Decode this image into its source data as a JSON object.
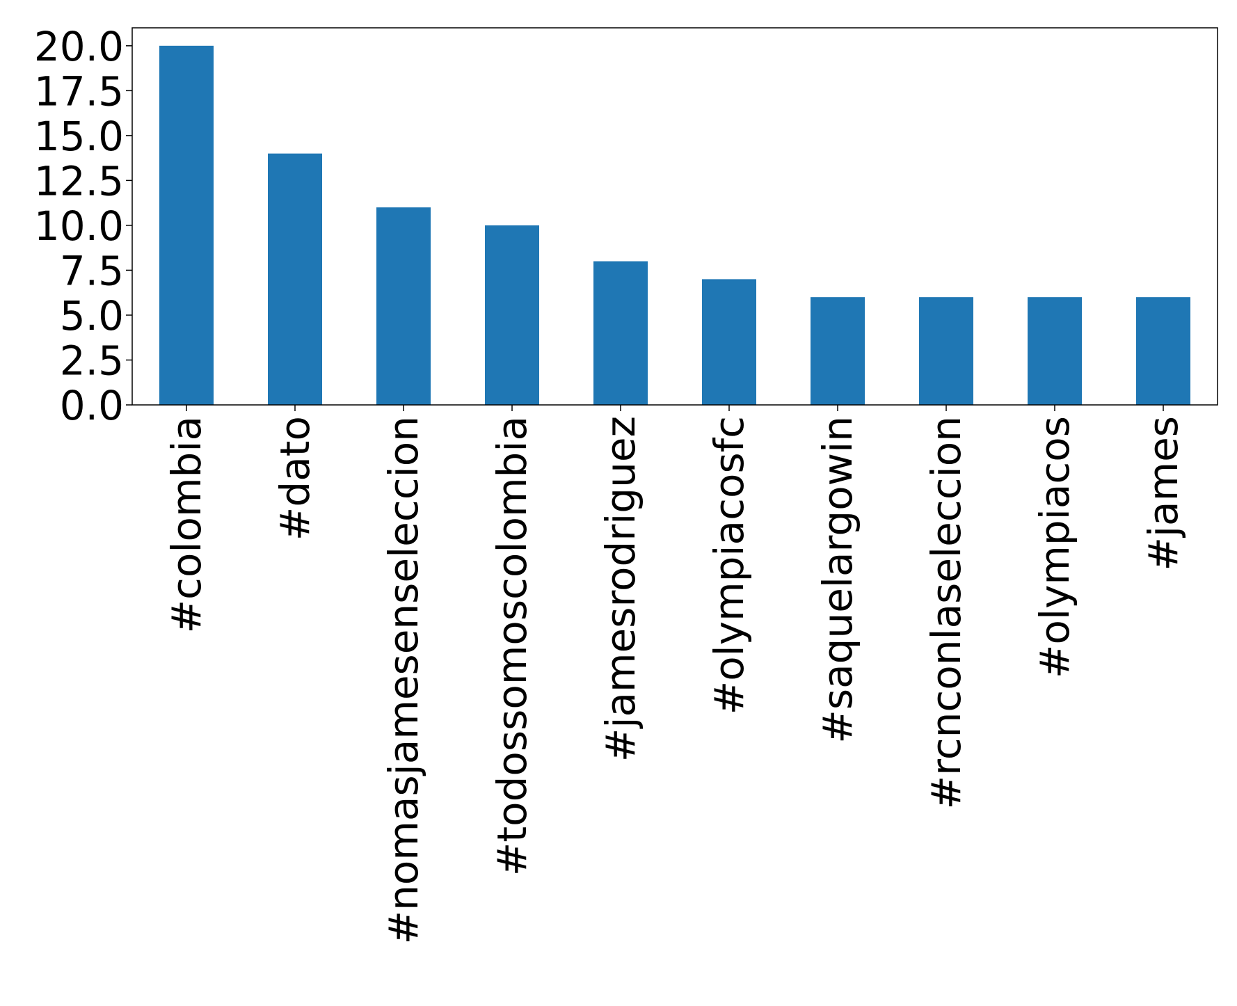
{
  "chart_data": {
    "type": "bar",
    "title": "",
    "xlabel": "",
    "ylabel": "",
    "categories": [
      "#colombia",
      "#dato",
      "#nomasjamesenseleccion",
      "#todossomoscolombia",
      "#jamesrodriguez",
      "#olympiacosfc",
      "#saquelargowin",
      "#rcnconlaseleccion",
      "#olympiacos",
      "#james"
    ],
    "values": [
      20,
      14,
      11,
      10,
      8,
      7,
      6,
      6,
      6,
      6
    ],
    "ylim": [
      0,
      21
    ],
    "yticks": [
      "0.0",
      "2.5",
      "5.0",
      "7.5",
      "10.0",
      "12.5",
      "15.0",
      "17.5",
      "20.0"
    ],
    "ytick_values": [
      0,
      2.5,
      5,
      7.5,
      10,
      12.5,
      15,
      17.5,
      20
    ],
    "bar_color": "#1f77b4",
    "grid": false,
    "legend": "none"
  }
}
